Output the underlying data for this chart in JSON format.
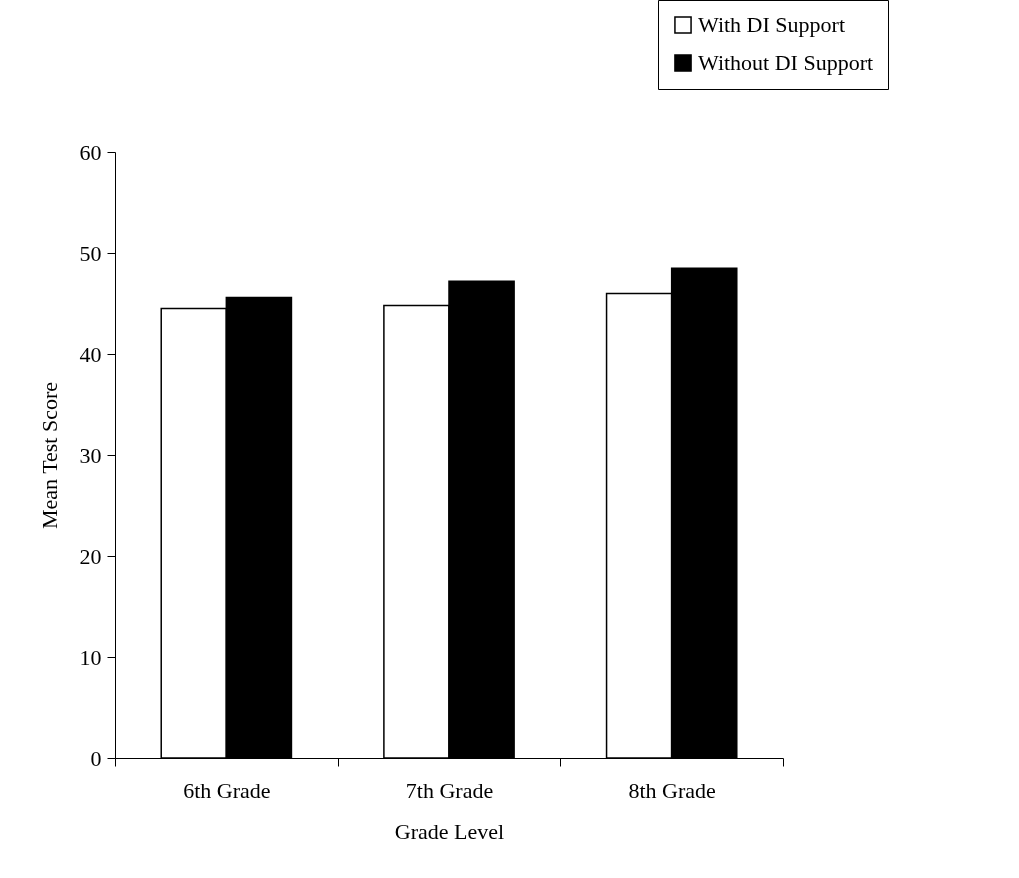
{
  "chart_data": {
    "type": "bar",
    "xlabel": "Grade Level",
    "ylabel": "Mean Test Score",
    "categories": [
      "6th Grade",
      "7th Grade",
      "8th Grade"
    ],
    "series": [
      {
        "name": "With DI Support",
        "color": "#ffffff",
        "values": [
          44.5,
          44.8,
          46.0
        ]
      },
      {
        "name": "Without DI Support",
        "color": "#000000",
        "values": [
          45.6,
          47.2,
          48.5
        ]
      }
    ],
    "ylim": [
      0,
      60
    ],
    "yticks": [
      0,
      10,
      20,
      30,
      40,
      50,
      60
    ],
    "grid": false,
    "legend": "top right"
  }
}
